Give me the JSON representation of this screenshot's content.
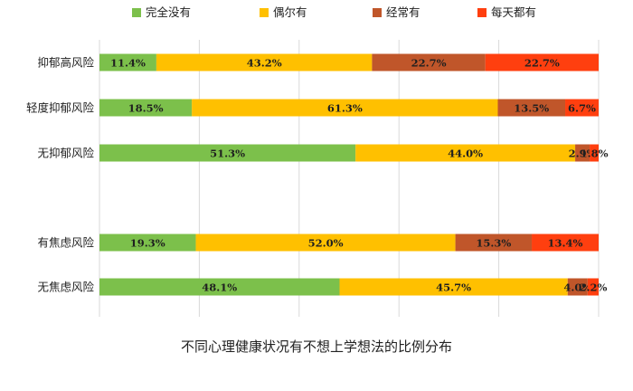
{
  "chart_data": {
    "type": "bar",
    "orientation": "horizontal",
    "stacked": true,
    "percent_stacked": true,
    "caption": "不同心理健康状况有不想上学想法的比例分布",
    "xlim": [
      0,
      100
    ],
    "grid": true,
    "legend_position": "top",
    "categories": [
      "抑郁高风险",
      "轻度抑郁风险",
      "无抑郁风险",
      "有焦虑风险",
      "无焦虑风险"
    ],
    "series": [
      {
        "name": "完全没有",
        "color": "#7CC04B",
        "values": [
          11.4,
          18.5,
          51.3,
          19.3,
          48.1
        ],
        "labels": [
          "11.4%",
          "18.5%",
          "51.3%",
          "19.3%",
          "48.1%"
        ]
      },
      {
        "name": "偶尔有",
        "color": "#FFC000",
        "values": [
          43.2,
          61.3,
          44.0,
          52.0,
          45.7
        ],
        "labels": [
          "43.2%",
          "61.3%",
          "44.0%",
          "52.0%",
          "45.7%"
        ]
      },
      {
        "name": "经常有",
        "color": "#C0562A",
        "values": [
          22.7,
          13.5,
          2.9,
          15.3,
          4.0
        ],
        "labels": [
          "22.7%",
          "13.5%",
          "2.9%",
          "15.3%",
          "4.0%"
        ]
      },
      {
        "name": "每天都有",
        "color": "#FF3F0F",
        "values": [
          22.7,
          6.7,
          1.8,
          13.4,
          2.2
        ],
        "labels": [
          "22.7%",
          "6.7%",
          "1.8%",
          "13.4%",
          "2.2%"
        ]
      }
    ]
  }
}
